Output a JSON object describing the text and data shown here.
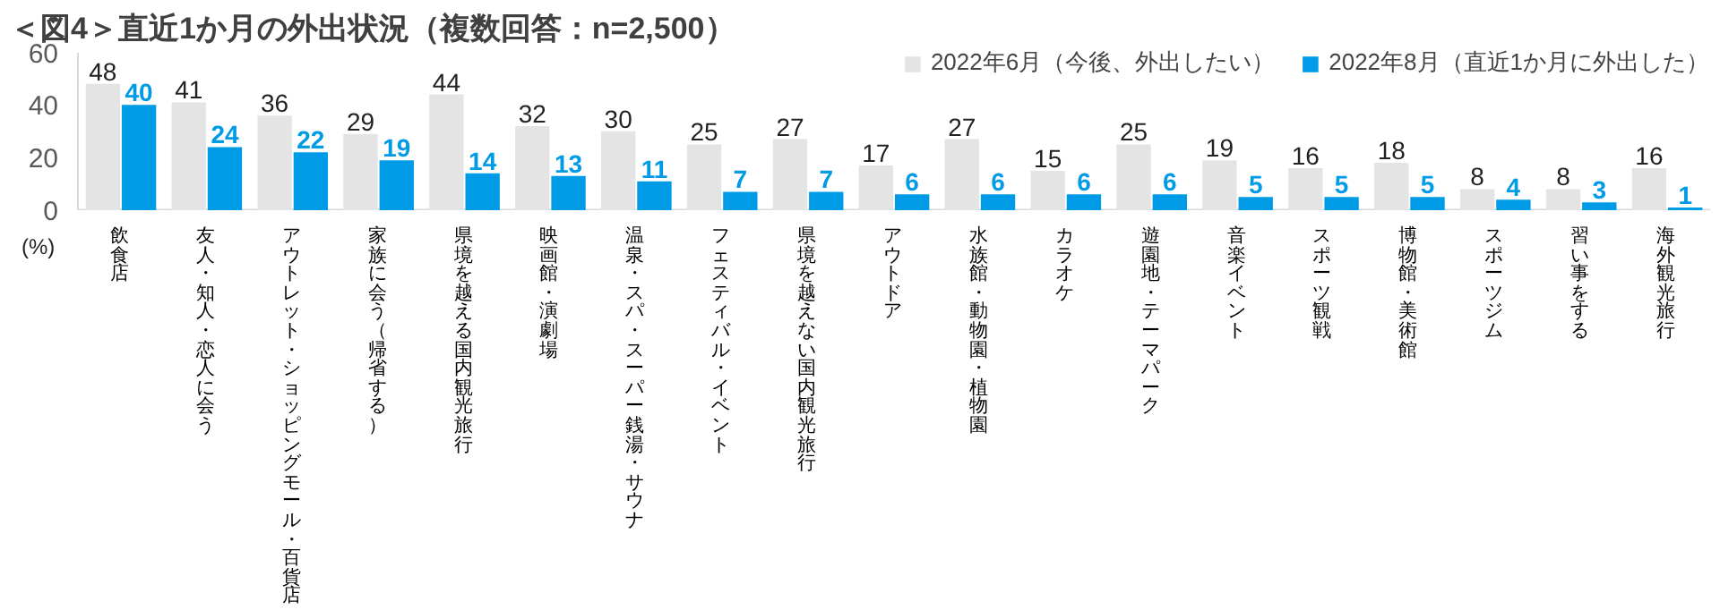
{
  "chart_data": {
    "type": "bar",
    "title": "＜図4＞直近1か月の外出状況（複数回答：n=2,500）",
    "ylabel": "(%)",
    "categories": [
      "飲食店",
      "友人・知人・恋人に会う",
      "アウトレット・ショッピングモール・百貨店",
      "家族に会う（帰省する）",
      "県境を越える国内観光旅行",
      "映画館・演劇場",
      "温泉・スパ・スーパー銭湯・サウナ",
      "フェスティバル・イベント",
      "県境を越えない国内観光旅行",
      "アウトドア",
      "水族館・動物園・植物園",
      "カラオケ",
      "遊園地・テーマパーク",
      "音楽イベント",
      "スポーツ観戦",
      "博物館・美術館",
      "スポーツジム",
      "習い事をする",
      "海外観光旅行"
    ],
    "series": [
      {
        "name": "2022年6月（今後、外出したい）",
        "color": "#e4e4e4",
        "values": [
          48,
          41,
          36,
          29,
          44,
          32,
          30,
          25,
          27,
          17,
          27,
          15,
          25,
          19,
          16,
          18,
          8,
          8,
          16
        ]
      },
      {
        "name": "2022年8月（直近1か月に外出した）",
        "color": "#009be6",
        "values": [
          40,
          24,
          22,
          19,
          14,
          13,
          11,
          7,
          7,
          6,
          6,
          6,
          6,
          5,
          5,
          5,
          4,
          3,
          1
        ]
      }
    ],
    "ylim": [
      0,
      60
    ],
    "yticks": [
      0,
      20,
      40,
      60
    ],
    "data_labels": true,
    "legend": "top right"
  }
}
